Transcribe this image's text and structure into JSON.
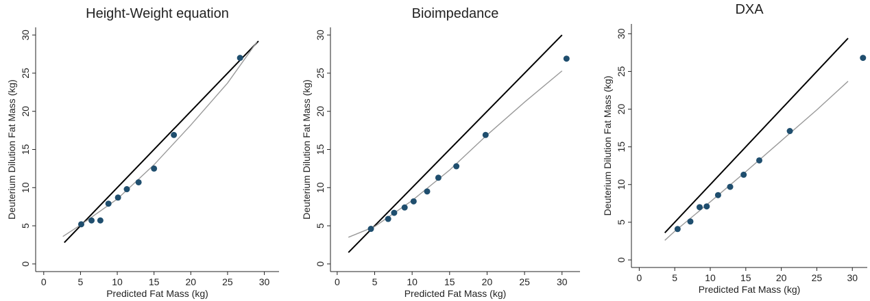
{
  "chart_data": [
    {
      "type": "scatter",
      "title": "Height-Weight equation",
      "x_label": "Predicted Fat Mass (kg)",
      "y_label": "Deuterium Dilution Fat Mass (kg)",
      "xlim": [
        -1.1,
        32
      ],
      "ylim": [
        -1,
        31
      ],
      "xticks": [
        0,
        5,
        10,
        15,
        20,
        25,
        30
      ],
      "yticks": [
        0,
        5,
        10,
        15,
        20,
        25,
        30
      ],
      "points": {
        "color": "#1f4e6e",
        "x": [
          5.1,
          6.5,
          7.7,
          8.8,
          10.1,
          11.3,
          12.9,
          15.0,
          17.7,
          26.7
        ],
        "y": [
          5.2,
          5.7,
          5.7,
          7.9,
          8.7,
          9.8,
          10.7,
          12.5,
          16.9,
          27.0
        ]
      },
      "lines": [
        {
          "color": "#000000",
          "x": [
            2.8,
            29.2
          ],
          "y": [
            2.8,
            29.2
          ]
        },
        {
          "color": "#999999",
          "x": [
            2.6,
            5,
            10,
            15,
            20,
            25,
            29
          ],
          "y": [
            3.6,
            5.1,
            8.5,
            13.0,
            18.2,
            23.7,
            29.1
          ]
        }
      ]
    },
    {
      "type": "scatter",
      "title": "Bioimpedance",
      "x_label": "Predicted Fat Mass (kg)",
      "y_label": "Deuterium Dilution Fat Mass (kg)",
      "xlim": [
        -0.9,
        32.4
      ],
      "ylim": [
        -1,
        31
      ],
      "xticks": [
        0,
        5,
        10,
        15,
        20,
        25,
        30
      ],
      "yticks": [
        0,
        5,
        10,
        15,
        20,
        25,
        30
      ],
      "points": {
        "color": "#1f4e6e",
        "x": [
          4.5,
          6.8,
          7.6,
          9.0,
          10.2,
          12.0,
          13.5,
          15.9,
          19.8,
          30.6
        ],
        "y": [
          4.6,
          5.9,
          6.7,
          7.4,
          8.2,
          9.5,
          11.3,
          12.8,
          16.9,
          26.9
        ]
      },
      "lines": [
        {
          "color": "#000000",
          "x": [
            1.5,
            30
          ],
          "y": [
            1.5,
            30
          ]
        },
        {
          "color": "#999999",
          "x": [
            1.5,
            5,
            10,
            15,
            20,
            25,
            30
          ],
          "y": [
            3.5,
            4.9,
            8.3,
            12.3,
            16.9,
            21.2,
            25.3
          ]
        }
      ]
    },
    {
      "type": "scatter",
      "title": "DXA",
      "x_label": "Predicted Fat Mass (kg)",
      "y_label": "Deuterium Dilution Fat Mass (kg)",
      "xlim": [
        -1.1,
        32.1
      ],
      "ylim": [
        -1,
        31.3
      ],
      "xticks": [
        0,
        5,
        10,
        15,
        20,
        25,
        30
      ],
      "yticks": [
        0,
        5,
        10,
        15,
        20,
        25,
        30
      ],
      "points": {
        "color": "#1f4e6e",
        "x": [
          5.4,
          7.2,
          8.5,
          9.5,
          11.1,
          12.8,
          14.7,
          16.9,
          21.2,
          31.5
        ],
        "y": [
          4.1,
          5.1,
          7.0,
          7.1,
          8.6,
          9.7,
          11.3,
          13.2,
          17.1,
          26.8
        ]
      },
      "lines": [
        {
          "color": "#000000",
          "x": [
            3.6,
            29.4
          ],
          "y": [
            3.6,
            29.4
          ]
        },
        {
          "color": "#999999",
          "x": [
            3.6,
            5,
            10,
            15,
            20,
            25,
            29.4
          ],
          "y": [
            2.6,
            3.8,
            7.7,
            11.7,
            15.8,
            19.9,
            23.7
          ]
        }
      ]
    }
  ]
}
